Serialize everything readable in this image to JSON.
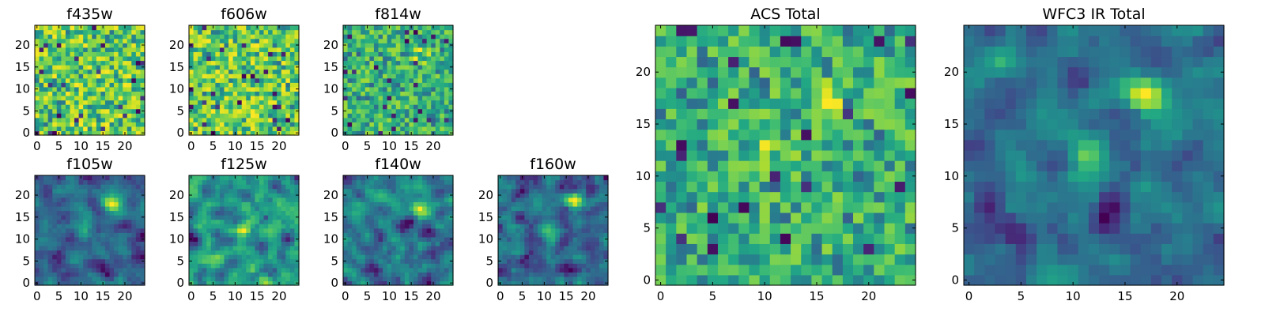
{
  "figure": {
    "description_free": true
  },
  "chart_data": [
    {
      "type": "heatmap",
      "title": "f435w",
      "colormap": "viridis",
      "grid_size": 25,
      "xlim": [
        0,
        24
      ],
      "ylim": [
        0,
        24
      ],
      "xticks": [
        0,
        5,
        10,
        15,
        20
      ],
      "yticks": [
        0,
        5,
        10,
        15,
        20
      ],
      "seed": 435,
      "smooth": 0,
      "bright_spots": []
    },
    {
      "type": "heatmap",
      "title": "f606w",
      "colormap": "viridis",
      "grid_size": 25,
      "xlim": [
        0,
        24
      ],
      "ylim": [
        0,
        24
      ],
      "xticks": [
        0,
        5,
        10,
        15,
        20
      ],
      "yticks": [
        0,
        5,
        10,
        15,
        20
      ],
      "seed": 606,
      "smooth": 0,
      "bright_spots": []
    },
    {
      "type": "heatmap",
      "title": "f814w",
      "colormap": "viridis",
      "grid_size": 25,
      "xlim": [
        0,
        24
      ],
      "ylim": [
        0,
        24
      ],
      "xticks": [
        0,
        5,
        10,
        15,
        20
      ],
      "yticks": [
        0,
        5,
        10,
        15,
        20
      ],
      "seed": 814,
      "smooth": 0,
      "bright_spots": [
        [
          17,
          18,
          0.25
        ]
      ]
    },
    {
      "type": "heatmap",
      "title": "f105w",
      "colormap": "viridis",
      "grid_size": 25,
      "xlim": [
        0,
        24
      ],
      "ylim": [
        0,
        24
      ],
      "xticks": [
        0,
        5,
        10,
        15,
        20
      ],
      "yticks": [
        0,
        5,
        10,
        15,
        20
      ],
      "seed": 105,
      "smooth": 1,
      "bright_spots": [
        [
          17,
          18,
          0.5
        ],
        [
          11,
          12,
          0.2
        ]
      ]
    },
    {
      "type": "heatmap",
      "title": "f125w",
      "colormap": "viridis",
      "grid_size": 25,
      "xlim": [
        0,
        24
      ],
      "ylim": [
        0,
        24
      ],
      "xticks": [
        0,
        5,
        10,
        15,
        20
      ],
      "yticks": [
        0,
        5,
        10,
        15,
        20
      ],
      "seed": 125,
      "smooth": 1,
      "bright_spots": [
        [
          12,
          12,
          0.3
        ]
      ]
    },
    {
      "type": "heatmap",
      "title": "f140w",
      "colormap": "viridis",
      "grid_size": 25,
      "xlim": [
        0,
        24
      ],
      "ylim": [
        0,
        24
      ],
      "xticks": [
        0,
        5,
        10,
        15,
        20
      ],
      "yticks": [
        0,
        5,
        10,
        15,
        20
      ],
      "seed": 140,
      "smooth": 1,
      "bright_spots": [
        [
          17,
          17,
          0.3
        ]
      ]
    },
    {
      "type": "heatmap",
      "title": "f160w",
      "colormap": "viridis",
      "grid_size": 25,
      "xlim": [
        0,
        24
      ],
      "ylim": [
        0,
        24
      ],
      "xticks": [
        0,
        5,
        10,
        15,
        20
      ],
      "yticks": [
        0,
        5,
        10,
        15,
        20
      ],
      "seed": 160,
      "smooth": 1,
      "bright_spots": [
        [
          17,
          19,
          0.45
        ],
        [
          11,
          12,
          0.2
        ]
      ]
    },
    {
      "type": "heatmap",
      "title": "ACS Total",
      "colormap": "viridis",
      "grid_size": 25,
      "xlim": [
        0,
        24
      ],
      "ylim": [
        0,
        24
      ],
      "xticks": [
        0,
        5,
        10,
        15,
        20
      ],
      "yticks": [
        0,
        5,
        10,
        15,
        20
      ],
      "seed": 9001,
      "smooth": 0,
      "bright_spots": [
        [
          17,
          17,
          0.3
        ],
        [
          11,
          13,
          0.25
        ]
      ]
    },
    {
      "type": "heatmap",
      "title": "WFC3 IR Total",
      "colormap": "viridis",
      "grid_size": 25,
      "xlim": [
        0,
        24
      ],
      "ylim": [
        0,
        24
      ],
      "xticks": [
        0,
        5,
        10,
        15,
        20
      ],
      "yticks": [
        0,
        5,
        10,
        15,
        20
      ],
      "seed": 7777,
      "smooth": 1,
      "bright_spots": [
        [
          17,
          18,
          0.6
        ],
        [
          11,
          12,
          0.45
        ],
        [
          3,
          21,
          0.2
        ]
      ]
    }
  ]
}
